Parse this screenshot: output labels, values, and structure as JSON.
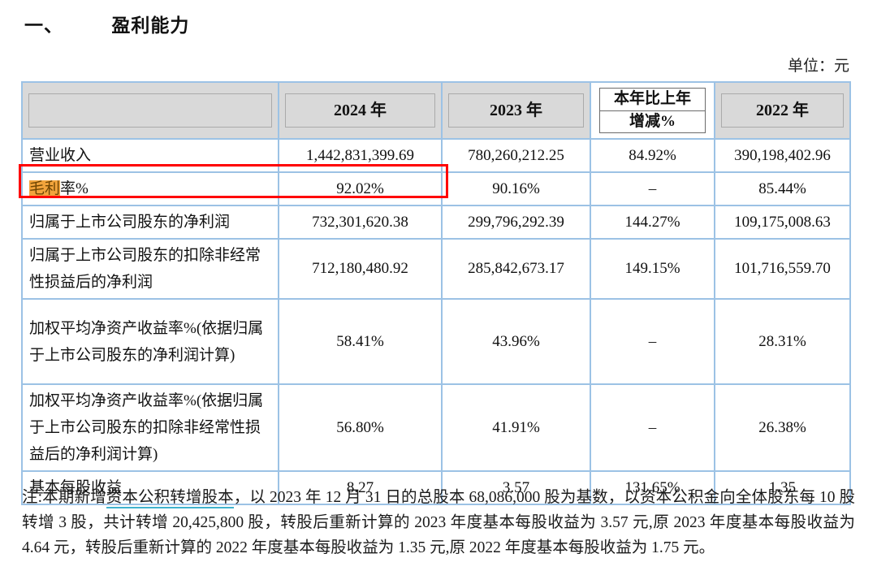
{
  "page": {
    "section_number": "一、",
    "section_title": "盈利能力",
    "unit_label": "单位：元"
  },
  "colors": {
    "table_border": "#9CC2E5",
    "header_bg": "#D9D9D9",
    "red_annotation_box": "#FF0000",
    "search_highlight_bg": "#F2A43C",
    "search_highlight_text": "#6E4503",
    "note_underline": "#3FB3CE"
  },
  "table": {
    "header": {
      "col_blank": "",
      "col_2024": "2024 年",
      "col_2023": "2023 年",
      "col_change_line1": "本年比上年",
      "col_change_line2": "增减%",
      "col_2022": "2022 年"
    },
    "rows": [
      {
        "label_parts": [
          {
            "text": "营业收入",
            "highlight": false
          }
        ],
        "v2024": "1,442,831,399.69",
        "v2023": "780,260,212.25",
        "chg": "84.92%",
        "v2022": "390,198,402.96"
      },
      {
        "label_parts": [
          {
            "text": "毛利",
            "highlight": true
          },
          {
            "text": "率%",
            "highlight": false
          }
        ],
        "v2024": "92.02%",
        "v2023": "90.16%",
        "chg": "–",
        "v2022": "85.44%"
      },
      {
        "label_parts": [
          {
            "text": "归属于上市公司股东的净利润",
            "highlight": false
          }
        ],
        "v2024": "732,301,620.38",
        "v2023": "299,796,292.39",
        "chg": "144.27%",
        "v2022": "109,175,008.63"
      },
      {
        "label_parts": [
          {
            "text": "归属于上市公司股东的扣除非经常性损益后的净利润",
            "highlight": false
          }
        ],
        "v2024": "712,180,480.92",
        "v2023": "285,842,673.17",
        "chg": "149.15%",
        "v2022": "101,716,559.70"
      },
      {
        "label_parts": [
          {
            "text": "加权平均净资产收益率%(依据归属于上市公司股东的净利润计算)",
            "highlight": false
          }
        ],
        "v2024": "58.41%",
        "v2023": "43.96%",
        "chg": "–",
        "v2022": "28.31%"
      },
      {
        "label_parts": [
          {
            "text": "加权平均净资产收益率%(依据归属于上市公司股东的扣除非经常性损益后的净利润计算)",
            "highlight": false
          }
        ],
        "v2024": "56.80%",
        "v2023": "41.91%",
        "chg": "–",
        "v2022": "26.38%"
      },
      {
        "label_parts": [
          {
            "text": "基本每股收益",
            "highlight": false
          }
        ],
        "v2024": "8.27",
        "v2023": "3.57",
        "chg": "131.65%",
        "v2022": "1.35"
      }
    ]
  },
  "note": {
    "prefix": "注:本期新增",
    "underlined_term": "资本公积转增股本",
    "body": "，以 2023 年 12 月 31 日的总股本 68,086,000 股为基数，以资本公积金向全体股东每 10 股转增 3 股，共计转增 20,425,800 股，转股后重新计算的 2023 年度基本每股收益为 3.57 元,原 2023 年度基本每股收益为 4.64 元，转股后重新计算的 2022 年度基本每股收益为 1.35 元,原 2022 年度基本每股收益为 1.75 元。"
  }
}
